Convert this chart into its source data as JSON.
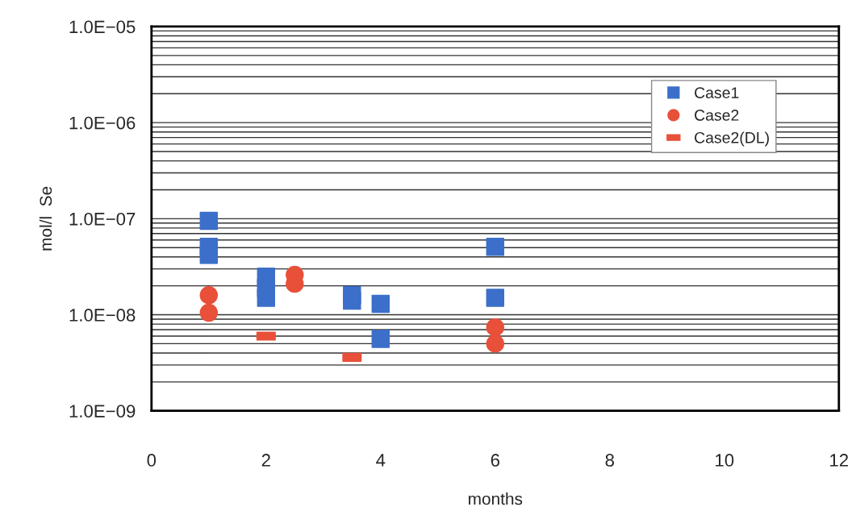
{
  "chart_data": {
    "type": "scatter",
    "xlabel": "months",
    "ylabel": "mol/l  Se",
    "series": [
      {
        "name": "Case1",
        "color": "#3b6fc9",
        "marker": "square",
        "x": [
          1,
          1,
          1,
          2,
          2,
          2,
          3.5,
          3.5,
          4,
          4,
          6,
          6
        ],
        "values": [
          9.5e-08,
          5.1e-08,
          4.2e-08,
          2.5e-08,
          1.9e-08,
          1.5e-08,
          1.6e-08,
          1.4e-08,
          1.3e-08,
          5.6e-09,
          5.1e-08,
          1.5e-08
        ]
      },
      {
        "name": "Case2",
        "color": "#e8503a",
        "marker": "circle",
        "x": [
          1,
          1,
          2.5,
          2.5,
          6,
          6
        ],
        "values": [
          1.6e-08,
          1.05e-08,
          2.6e-08,
          2.1e-08,
          7.4e-09,
          5e-09
        ]
      },
      {
        "name": "Case2(DL)",
        "color": "#e8503a",
        "x": [
          2,
          3.5
        ],
        "values": [
          6e-09,
          3.6e-09
        ]
      }
    ],
    "log": "y",
    "xlim": [
      0,
      12
    ],
    "xticks": [
      0,
      2,
      4,
      6,
      8,
      10,
      12
    ],
    "ylim": [
      1e-09,
      1e-05
    ],
    "yticks": [
      {
        "value": 1e-09,
        "label": "1.0E−09"
      },
      {
        "value": 1e-08,
        "label": "1.0E−08"
      },
      {
        "value": 1e-07,
        "label": "1.0E−07"
      },
      {
        "value": 1e-06,
        "label": "1.0E−06"
      },
      {
        "value": 1e-05,
        "label": "1.0E−05"
      }
    ],
    "grid": "y",
    "legend": "top right"
  }
}
